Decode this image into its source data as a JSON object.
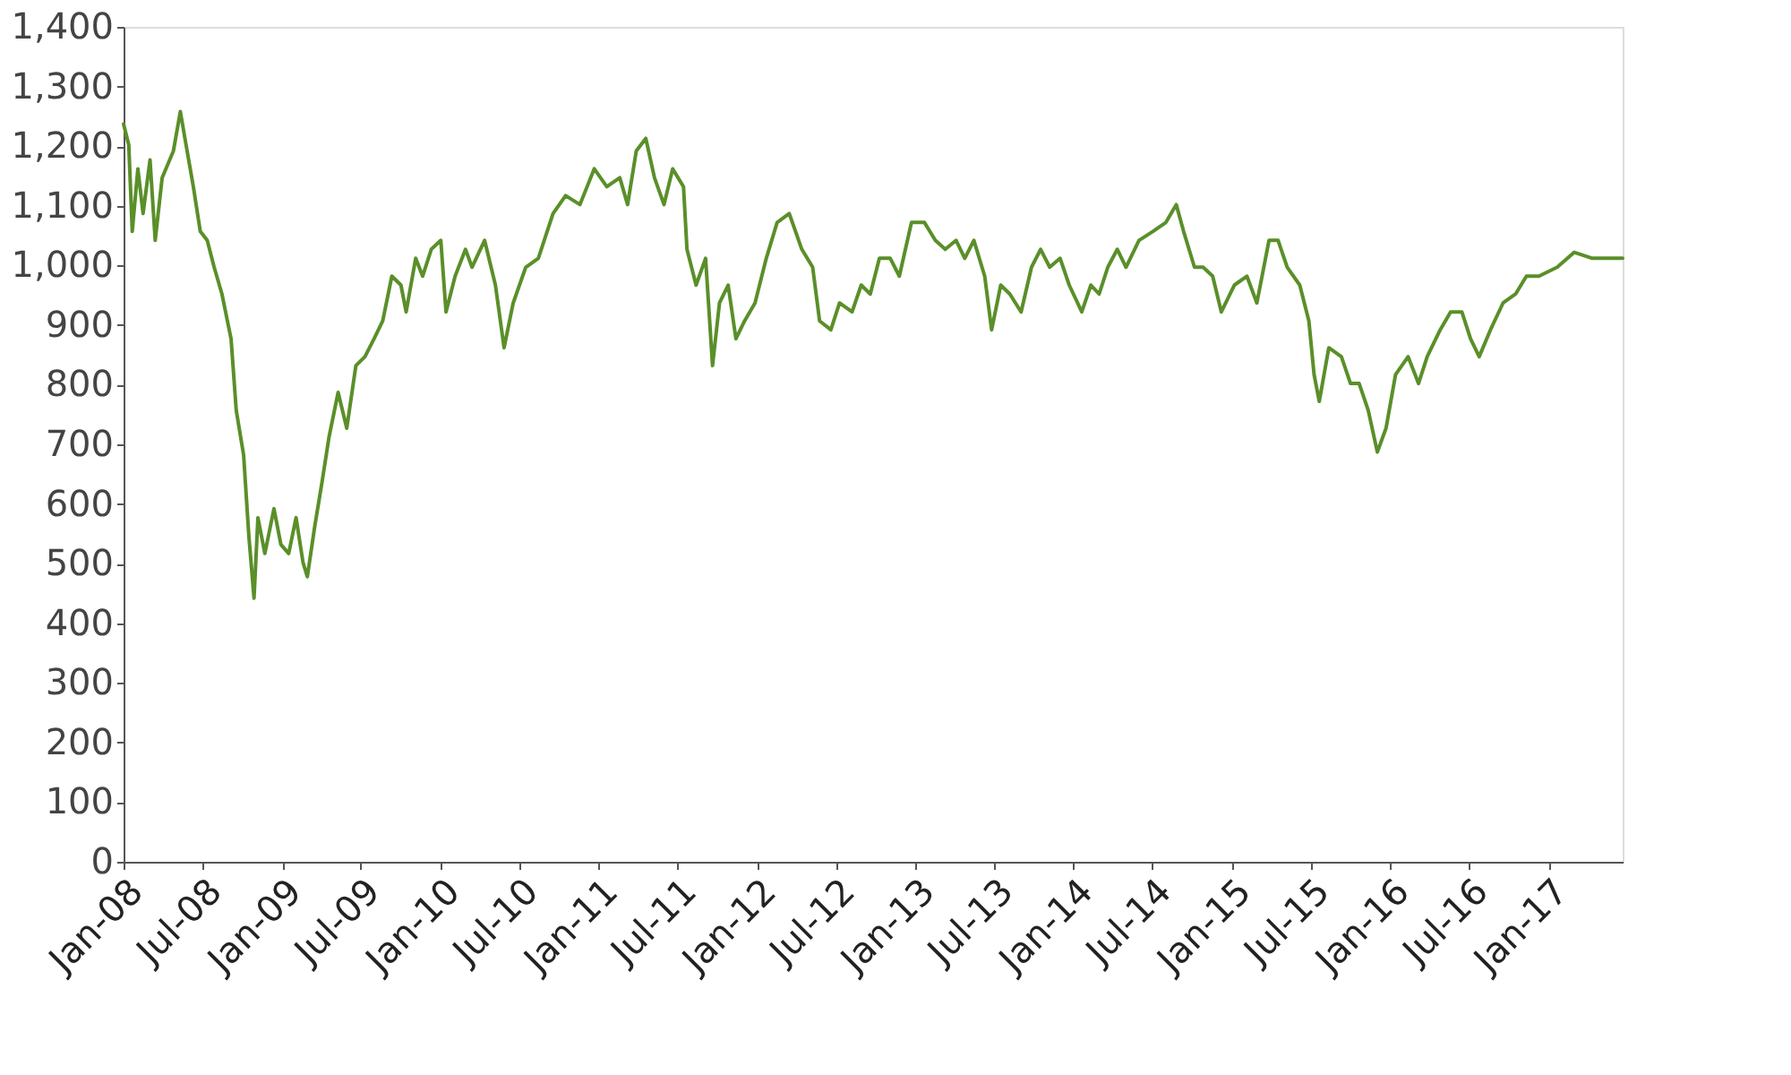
{
  "chart_data": {
    "type": "line",
    "x": [
      "2008-01-01",
      "2008-01-13",
      "2008-01-21",
      "2008-02-03",
      "2008-02-15",
      "2008-03-02",
      "2008-03-14",
      "2008-03-30",
      "2008-04-25",
      "2008-05-11",
      "2008-05-23",
      "2008-06-10",
      "2008-06-26",
      "2008-07-12",
      "2008-07-28",
      "2008-08-15",
      "2008-09-05",
      "2008-09-17",
      "2008-10-04",
      "2008-10-16",
      "2008-10-28",
      "2008-11-06",
      "2008-11-22",
      "2008-12-13",
      "2008-12-29",
      "2009-01-16",
      "2009-02-02",
      "2009-02-18",
      "2009-02-28",
      "2009-03-17",
      "2009-04-03",
      "2009-04-19",
      "2009-05-10",
      "2009-05-30",
      "2009-06-20",
      "2009-07-11",
      "2009-08-01",
      "2009-08-21",
      "2009-09-11",
      "2009-10-02",
      "2009-10-14",
      "2009-11-05",
      "2009-11-21",
      "2009-12-11",
      "2010-01-02",
      "2010-01-14",
      "2010-02-04",
      "2010-02-28",
      "2010-03-15",
      "2010-04-13",
      "2010-05-08",
      "2010-05-28",
      "2010-06-18",
      "2010-07-17",
      "2010-08-15",
      "2010-09-18",
      "2010-10-17",
      "2010-11-19",
      "2010-12-22",
      "2011-01-20",
      "2011-02-19",
      "2011-03-09",
      "2011-03-29",
      "2011-04-20",
      "2011-05-10",
      "2011-06-01",
      "2011-06-21",
      "2011-07-16",
      "2011-07-24",
      "2011-08-14",
      "2011-09-05",
      "2011-09-21",
      "2011-10-07",
      "2011-10-27",
      "2011-11-14",
      "2011-12-04",
      "2011-12-28",
      "2012-01-23",
      "2012-02-17",
      "2012-03-16",
      "2012-04-14",
      "2012-05-09",
      "2012-05-25",
      "2012-06-20",
      "2012-07-10",
      "2012-08-08",
      "2012-08-29",
      "2012-09-19",
      "2012-10-10",
      "2012-11-04",
      "2012-11-25",
      "2012-12-23",
      "2013-01-22",
      "2013-02-16",
      "2013-03-11",
      "2013-04-05",
      "2013-04-25",
      "2013-05-16",
      "2013-06-10",
      "2013-06-26",
      "2013-07-17",
      "2013-08-07",
      "2013-09-02",
      "2013-09-26",
      "2013-10-17",
      "2013-11-07",
      "2013-12-01",
      "2013-12-22",
      "2014-01-20",
      "2014-02-10",
      "2014-03-01",
      "2014-03-21",
      "2014-04-12",
      "2014-05-02",
      "2014-06-01",
      "2014-07-03",
      "2014-08-02",
      "2014-08-26",
      "2014-09-12",
      "2014-10-07",
      "2014-10-27",
      "2014-11-18",
      "2014-12-08",
      "2015-01-07",
      "2015-02-05",
      "2015-02-28",
      "2015-03-28",
      "2015-04-18",
      "2015-05-09",
      "2015-06-07",
      "2015-06-28",
      "2015-07-10",
      "2015-07-22",
      "2015-08-13",
      "2015-09-11",
      "2015-10-02",
      "2015-10-22",
      "2015-11-12",
      "2015-12-03",
      "2015-12-23",
      "2016-01-14",
      "2016-02-12",
      "2016-03-07",
      "2016-03-27",
      "2016-04-26",
      "2016-05-20",
      "2016-06-15",
      "2016-07-05",
      "2016-07-25",
      "2016-08-20",
      "2016-09-18",
      "2016-10-17",
      "2016-11-11",
      "2016-12-10",
      "2017-01-21",
      "2017-03-01",
      "2017-04-12",
      "2017-06-21"
    ],
    "series": [
      {
        "color": "#5a8f29",
        "values": [
          1237,
          1202,
          1057,
          1162,
          1087,
          1177,
          1042,
          1147,
          1192,
          1258,
          1207,
          1132,
          1057,
          1042,
          997,
          952,
          877,
          757,
          682,
          547,
          442,
          577,
          517,
          592,
          532,
          517,
          577,
          502,
          478,
          562,
          637,
          712,
          787,
          727,
          832,
          847,
          877,
          907,
          982,
          967,
          922,
          1012,
          982,
          1027,
          1042,
          922,
          982,
          1027,
          997,
          1042,
          967,
          862,
          937,
          997,
          1012,
          1087,
          1117,
          1102,
          1162,
          1132,
          1147,
          1102,
          1192,
          1213,
          1147,
          1102,
          1162,
          1132,
          1027,
          967,
          1012,
          832,
          937,
          967,
          877,
          907,
          937,
          1012,
          1072,
          1087,
          1027,
          997,
          907,
          892,
          937,
          922,
          967,
          952,
          1012,
          1012,
          982,
          1072,
          1072,
          1042,
          1027,
          1042,
          1012,
          1042,
          982,
          892,
          967,
          952,
          922,
          997,
          1027,
          997,
          1012,
          967,
          922,
          967,
          952,
          997,
          1027,
          997,
          1042,
          1057,
          1072,
          1102,
          1057,
          997,
          997,
          982,
          922,
          967,
          982,
          937,
          1042,
          1042,
          997,
          967,
          907,
          817,
          772,
          862,
          847,
          802,
          802,
          757,
          687,
          727,
          817,
          847,
          802,
          847,
          892,
          922,
          922,
          877,
          847,
          892,
          937,
          952,
          982,
          982,
          997,
          1022,
          1012,
          1012
        ]
      }
    ],
    "xlim": [
      "2008-01-01",
      "2017-06-21"
    ],
    "xticks": [
      {
        "value": "2008-01-01",
        "label": "Jan-08"
      },
      {
        "value": "2008-07-01",
        "label": "Jul-08"
      },
      {
        "value": "2009-01-01",
        "label": "Jan-09"
      },
      {
        "value": "2009-07-01",
        "label": "Jul-09"
      },
      {
        "value": "2010-01-01",
        "label": "Jan-10"
      },
      {
        "value": "2010-07-01",
        "label": "Jul-10"
      },
      {
        "value": "2011-01-01",
        "label": "Jan-11"
      },
      {
        "value": "2011-07-01",
        "label": "Jul-11"
      },
      {
        "value": "2012-01-01",
        "label": "Jan-12"
      },
      {
        "value": "2012-07-01",
        "label": "Jul-12"
      },
      {
        "value": "2013-01-01",
        "label": "Jan-13"
      },
      {
        "value": "2013-07-01",
        "label": "Jul-13"
      },
      {
        "value": "2014-01-01",
        "label": "Jan-14"
      },
      {
        "value": "2014-07-01",
        "label": "Jul-14"
      },
      {
        "value": "2015-01-01",
        "label": "Jan-15"
      },
      {
        "value": "2015-07-01",
        "label": "Jul-15"
      },
      {
        "value": "2016-01-01",
        "label": "Jan-16"
      },
      {
        "value": "2016-07-01",
        "label": "Jul-16"
      },
      {
        "value": "2017-01-01",
        "label": "Jan-17"
      }
    ],
    "ylim": [
      0,
      1400
    ],
    "yticks": [
      0,
      100,
      200,
      300,
      400,
      500,
      600,
      700,
      800,
      900,
      {
        "value": 1000,
        "label": "1,000"
      },
      {
        "value": 1100,
        "label": "1,100"
      },
      {
        "value": 1200,
        "label": "1,200"
      },
      {
        "value": 1300,
        "label": "1,300"
      },
      {
        "value": 1400,
        "label": "1,400"
      }
    ],
    "grid": false,
    "legend": false,
    "line_style": "solid",
    "marker": "none"
  }
}
